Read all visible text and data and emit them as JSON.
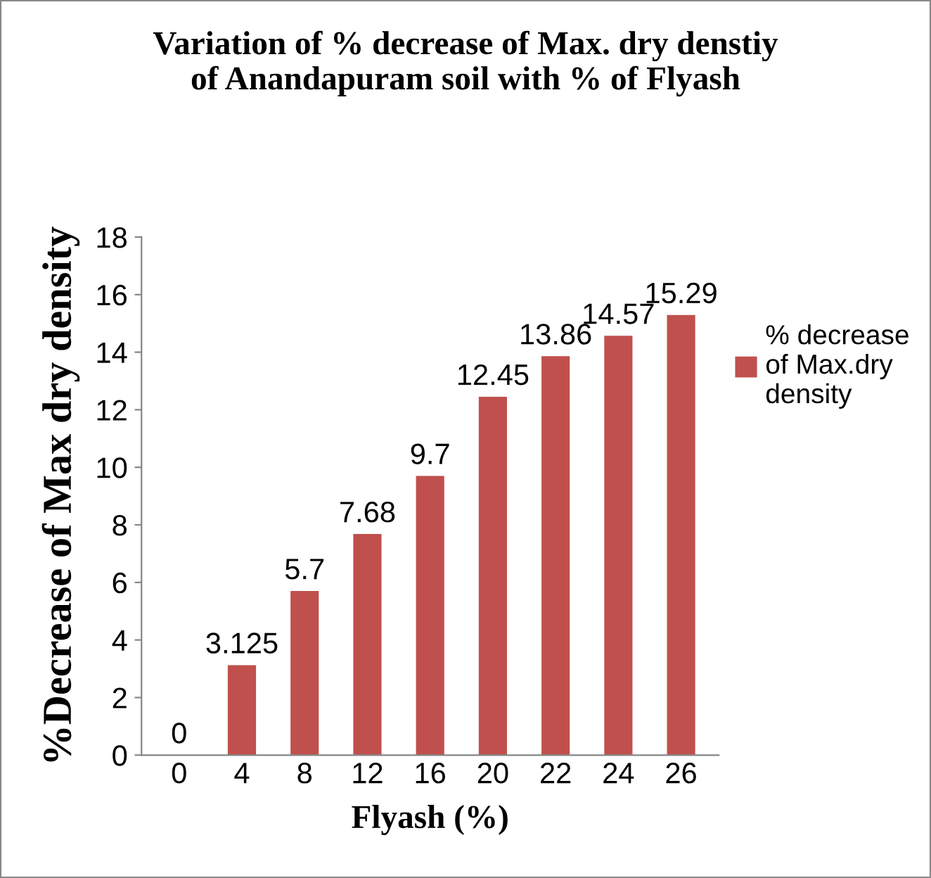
{
  "chart_data": {
    "type": "bar",
    "title": "Variation of % decrease of Max. dry denstiy\nof Anandapuram soil with % of Flyash",
    "xlabel": "Flyash (%)",
    "ylabel": "%Decrease of Max dry density",
    "categories": [
      "0",
      "4",
      "8",
      "12",
      "16",
      "20",
      "22",
      "24",
      "26"
    ],
    "series": [
      {
        "name": "% decrease\nof Max.dry\ndensity",
        "color": "#c0504d",
        "values": [
          0,
          3.125,
          5.7,
          7.68,
          9.7,
          12.45,
          13.86,
          14.57,
          15.29
        ]
      }
    ],
    "ylim": [
      0,
      18
    ],
    "yticks": [
      0,
      2,
      4,
      6,
      8,
      10,
      12,
      14,
      16,
      18
    ],
    "data_labels": true,
    "legend": "right",
    "grid": false
  }
}
